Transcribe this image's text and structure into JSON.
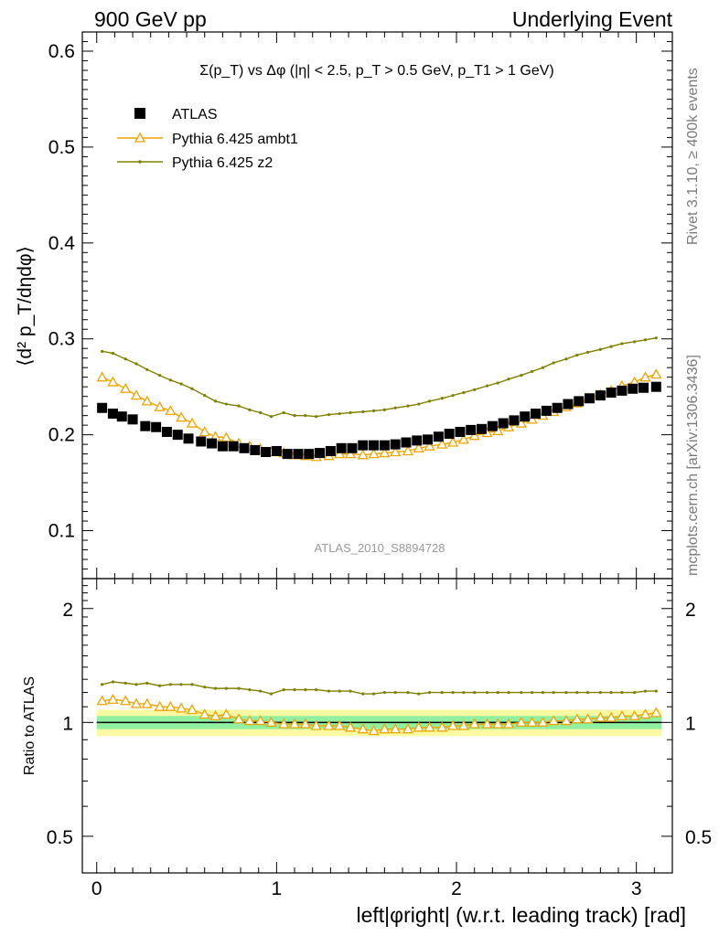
{
  "header": {
    "left": "900 GeV pp",
    "right": "Underlying Event"
  },
  "side": {
    "rivet": "Rivet 3.1.10, ≥ 400k events",
    "mcplots": "mcplots.cern.ch [arXiv:1306.3436]"
  },
  "watermark": "ATLAS_2010_S8894728",
  "colors": {
    "atlas": "#000000",
    "ambt1": "#f0a400",
    "z2": "#808000",
    "band_outer": "#fbf9a1",
    "band_inner": "#90f0a0"
  },
  "chart_data": [
    {
      "type": "scatter",
      "title": "Σ(p_T) vs Δφ (|η| < 2.5, p_T > 0.5 GeV, p_T1 > 1 GeV)",
      "ylabel": "⟨d² p_T/dηdφ⟩",
      "xlabel": "",
      "xlim": [
        -0.08,
        3.2
      ],
      "ylim": [
        0.05,
        0.62
      ],
      "yticks": [
        "0.1",
        "0.2",
        "0.3",
        "0.4",
        "0.5",
        "0.6"
      ],
      "legend_placement": "top-left",
      "series": [
        {
          "name": "ATLAS",
          "x": [
            0.03,
            0.09,
            0.14,
            0.2,
            0.27,
            0.33,
            0.39,
            0.45,
            0.51,
            0.58,
            0.64,
            0.7,
            0.76,
            0.82,
            0.88,
            0.94,
            1.0,
            1.06,
            1.12,
            1.18,
            1.24,
            1.3,
            1.36,
            1.42,
            1.48,
            1.54,
            1.6,
            1.66,
            1.72,
            1.78,
            1.84,
            1.9,
            1.96,
            2.02,
            2.08,
            2.14,
            2.2,
            2.26,
            2.32,
            2.38,
            2.44,
            2.5,
            2.56,
            2.62,
            2.68,
            2.74,
            2.8,
            2.86,
            2.92,
            2.98,
            3.04,
            3.11
          ],
          "values": [
            0.228,
            0.222,
            0.219,
            0.216,
            0.209,
            0.208,
            0.203,
            0.2,
            0.196,
            0.193,
            0.191,
            0.188,
            0.188,
            0.186,
            0.184,
            0.182,
            0.183,
            0.18,
            0.18,
            0.18,
            0.181,
            0.183,
            0.186,
            0.186,
            0.189,
            0.189,
            0.189,
            0.19,
            0.192,
            0.194,
            0.195,
            0.198,
            0.201,
            0.203,
            0.205,
            0.206,
            0.209,
            0.212,
            0.215,
            0.219,
            0.222,
            0.225,
            0.228,
            0.232,
            0.235,
            0.238,
            0.241,
            0.244,
            0.246,
            0.248,
            0.249,
            0.25
          ]
        },
        {
          "name": "Pythia 6.425 ambt1",
          "x": [
            0.03,
            0.09,
            0.16,
            0.22,
            0.28,
            0.35,
            0.41,
            0.47,
            0.53,
            0.6,
            0.66,
            0.72,
            0.79,
            0.85,
            0.91,
            0.97,
            1.04,
            1.1,
            1.16,
            1.22,
            1.29,
            1.35,
            1.41,
            1.48,
            1.54,
            1.6,
            1.66,
            1.73,
            1.79,
            1.85,
            1.92,
            1.98,
            2.04,
            2.1,
            2.17,
            2.23,
            2.29,
            2.36,
            2.42,
            2.48,
            2.54,
            2.61,
            2.67,
            2.73,
            2.8,
            2.86,
            2.92,
            2.99,
            3.05,
            3.11
          ],
          "values": [
            0.26,
            0.255,
            0.248,
            0.241,
            0.235,
            0.229,
            0.225,
            0.218,
            0.212,
            0.203,
            0.198,
            0.197,
            0.191,
            0.188,
            0.185,
            0.182,
            0.181,
            0.179,
            0.178,
            0.177,
            0.178,
            0.18,
            0.18,
            0.179,
            0.18,
            0.181,
            0.182,
            0.183,
            0.186,
            0.188,
            0.19,
            0.192,
            0.195,
            0.199,
            0.202,
            0.204,
            0.208,
            0.212,
            0.216,
            0.22,
            0.224,
            0.229,
            0.233,
            0.238,
            0.242,
            0.246,
            0.251,
            0.255,
            0.26,
            0.263
          ]
        },
        {
          "name": "Pythia 6.425 z2",
          "x": [
            0.03,
            0.09,
            0.16,
            0.22,
            0.28,
            0.35,
            0.41,
            0.47,
            0.53,
            0.6,
            0.66,
            0.72,
            0.79,
            0.85,
            0.91,
            0.97,
            1.04,
            1.1,
            1.16,
            1.22,
            1.29,
            1.35,
            1.41,
            1.48,
            1.54,
            1.6,
            1.66,
            1.73,
            1.79,
            1.85,
            1.92,
            1.98,
            2.04,
            2.1,
            2.17,
            2.23,
            2.29,
            2.36,
            2.42,
            2.48,
            2.54,
            2.61,
            2.67,
            2.73,
            2.8,
            2.86,
            2.92,
            2.99,
            3.05,
            3.11
          ],
          "values": [
            0.287,
            0.285,
            0.279,
            0.274,
            0.268,
            0.262,
            0.257,
            0.253,
            0.248,
            0.241,
            0.235,
            0.232,
            0.23,
            0.226,
            0.223,
            0.219,
            0.223,
            0.22,
            0.22,
            0.219,
            0.221,
            0.222,
            0.223,
            0.224,
            0.225,
            0.226,
            0.228,
            0.23,
            0.232,
            0.235,
            0.238,
            0.241,
            0.244,
            0.247,
            0.251,
            0.254,
            0.258,
            0.262,
            0.266,
            0.27,
            0.275,
            0.279,
            0.283,
            0.286,
            0.289,
            0.292,
            0.295,
            0.297,
            0.299,
            0.301
          ]
        }
      ]
    },
    {
      "type": "line",
      "ylabel": "Ratio to ATLAS",
      "xlabel": "left|φright| (w.r.t. leading track) [rad]",
      "xlim": [
        -0.08,
        3.2
      ],
      "ylim": [
        0.4,
        2.4
      ],
      "yscale": "log",
      "yticks": [
        "0.5",
        "1",
        "2"
      ],
      "xticks": [
        "0",
        "1",
        "2",
        "3"
      ],
      "band": {
        "inner": [
          0.96,
          1.04
        ],
        "outer": [
          0.92,
          1.08
        ]
      },
      "series": [
        {
          "name": "Pythia 6.425 ambt1",
          "x": [
            0.03,
            0.09,
            0.16,
            0.22,
            0.28,
            0.35,
            0.41,
            0.47,
            0.53,
            0.6,
            0.66,
            0.72,
            0.79,
            0.85,
            0.91,
            0.97,
            1.04,
            1.1,
            1.16,
            1.22,
            1.29,
            1.35,
            1.41,
            1.48,
            1.54,
            1.6,
            1.66,
            1.73,
            1.79,
            1.85,
            1.92,
            1.98,
            2.04,
            2.1,
            2.17,
            2.23,
            2.29,
            2.36,
            2.42,
            2.48,
            2.54,
            2.61,
            2.67,
            2.73,
            2.8,
            2.86,
            2.92,
            2.99,
            3.05,
            3.11
          ],
          "values": [
            1.14,
            1.15,
            1.14,
            1.12,
            1.12,
            1.1,
            1.1,
            1.09,
            1.08,
            1.05,
            1.04,
            1.05,
            1.02,
            1.01,
            1.01,
            1.0,
            0.99,
            0.99,
            0.99,
            0.98,
            0.98,
            0.98,
            0.97,
            0.96,
            0.95,
            0.96,
            0.96,
            0.96,
            0.97,
            0.97,
            0.97,
            0.98,
            0.98,
            0.99,
            0.99,
            0.99,
            0.99,
            1.0,
            1.0,
            1.0,
            1.01,
            1.01,
            1.02,
            1.02,
            1.03,
            1.03,
            1.04,
            1.04,
            1.05,
            1.06
          ]
        },
        {
          "name": "Pythia 6.425 z2",
          "x": [
            0.03,
            0.09,
            0.16,
            0.22,
            0.28,
            0.35,
            0.41,
            0.47,
            0.53,
            0.6,
            0.66,
            0.72,
            0.79,
            0.85,
            0.91,
            0.97,
            1.04,
            1.1,
            1.16,
            1.22,
            1.29,
            1.35,
            1.41,
            1.48,
            1.54,
            1.6,
            1.66,
            1.73,
            1.79,
            1.85,
            1.92,
            1.98,
            2.04,
            2.1,
            2.17,
            2.23,
            2.29,
            2.36,
            2.42,
            2.48,
            2.54,
            2.61,
            2.67,
            2.73,
            2.8,
            2.86,
            2.92,
            2.99,
            3.05,
            3.11
          ],
          "values": [
            1.26,
            1.28,
            1.27,
            1.26,
            1.27,
            1.25,
            1.26,
            1.26,
            1.26,
            1.24,
            1.23,
            1.23,
            1.23,
            1.22,
            1.21,
            1.19,
            1.22,
            1.22,
            1.22,
            1.22,
            1.21,
            1.21,
            1.21,
            1.19,
            1.19,
            1.2,
            1.2,
            1.2,
            1.19,
            1.2,
            1.2,
            1.2,
            1.2,
            1.2,
            1.2,
            1.2,
            1.2,
            1.2,
            1.2,
            1.2,
            1.2,
            1.2,
            1.2,
            1.2,
            1.2,
            1.2,
            1.2,
            1.2,
            1.21,
            1.21
          ]
        }
      ]
    }
  ]
}
